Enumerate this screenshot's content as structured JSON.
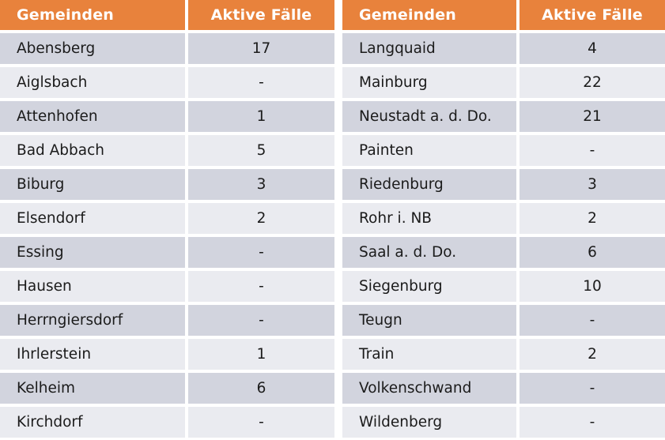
{
  "column_headers": {
    "municipality": "Gemeinden",
    "active_cases": "Aktive Fälle"
  },
  "colors": {
    "header_bg": "#e8823c",
    "header_text": "#ffffff",
    "row_dark": "#d2d4de",
    "row_light": "#eaebf0",
    "separator": "#ffffff",
    "body_text": "#1b1b1b"
  },
  "left_rows": [
    {
      "name": "Abensberg",
      "value": "17"
    },
    {
      "name": "Aiglsbach",
      "value": "-"
    },
    {
      "name": "Attenhofen",
      "value": "1"
    },
    {
      "name": "Bad Abbach",
      "value": "5"
    },
    {
      "name": "Biburg",
      "value": "3"
    },
    {
      "name": "Elsendorf",
      "value": "2"
    },
    {
      "name": "Essing",
      "value": "-"
    },
    {
      "name": "Hausen",
      "value": "-"
    },
    {
      "name": "Herrngiersdorf",
      "value": "-"
    },
    {
      "name": "Ihrlerstein",
      "value": "1"
    },
    {
      "name": "Kelheim",
      "value": "6"
    },
    {
      "name": "Kirchdorf",
      "value": "-"
    }
  ],
  "right_rows": [
    {
      "name": "Langquaid",
      "value": "4"
    },
    {
      "name": "Mainburg",
      "value": "22"
    },
    {
      "name": "Neustadt a. d. Do.",
      "value": "21"
    },
    {
      "name": "Painten",
      "value": "-"
    },
    {
      "name": "Riedenburg",
      "value": "3"
    },
    {
      "name": "Rohr i. NB",
      "value": "2"
    },
    {
      "name": "Saal a. d. Do.",
      "value": "6"
    },
    {
      "name": "Siegenburg",
      "value": "10"
    },
    {
      "name": "Teugn",
      "value": "-"
    },
    {
      "name": "Train",
      "value": "2"
    },
    {
      "name": "Volkenschwand",
      "value": "-"
    },
    {
      "name": "Wildenberg",
      "value": "-"
    }
  ]
}
